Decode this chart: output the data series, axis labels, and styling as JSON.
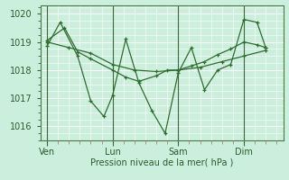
{
  "xlabel": "Pression niveau de la mer( hPa )",
  "background_color": "#cceedd",
  "grid_color": "#ffffff",
  "line_color": "#2d6e2d",
  "marker_color": "#2d6e2d",
  "ylim": [
    1015.5,
    1020.3
  ],
  "yticks": [
    1016,
    1017,
    1018,
    1019,
    1020
  ],
  "day_labels": [
    "Ven",
    "Lun",
    "Sam",
    "Dim"
  ],
  "day_positions": [
    0,
    30,
    60,
    90
  ],
  "vline_positions": [
    0,
    30,
    60,
    90
  ],
  "xlim": [
    -3,
    108
  ],
  "series": [
    {
      "x": [
        0,
        8,
        14,
        20,
        30,
        36,
        42,
        50,
        55,
        60,
        66,
        72,
        78,
        84,
        90,
        96,
        100
      ],
      "y": [
        1019.05,
        1019.5,
        1018.65,
        1018.4,
        1018.0,
        1017.75,
        1017.6,
        1017.8,
        1018.0,
        1018.0,
        1018.15,
        1018.3,
        1018.55,
        1018.75,
        1019.0,
        1018.9,
        1018.8
      ]
    },
    {
      "x": [
        0,
        6,
        14,
        20,
        26,
        30,
        36,
        42,
        48,
        54,
        60,
        66,
        72,
        78,
        84,
        90,
        96,
        100
      ],
      "y": [
        1018.85,
        1019.7,
        1018.5,
        1016.9,
        1016.35,
        1017.1,
        1019.1,
        1017.55,
        1016.55,
        1015.75,
        1017.9,
        1018.8,
        1017.3,
        1018.0,
        1018.2,
        1019.8,
        1019.7,
        1018.8
      ]
    },
    {
      "x": [
        0,
        10,
        20,
        30,
        40,
        50,
        60,
        70,
        80,
        90,
        100
      ],
      "y": [
        1019.0,
        1018.8,
        1018.6,
        1018.2,
        1018.0,
        1017.95,
        1018.0,
        1018.1,
        1018.3,
        1018.5,
        1018.7
      ]
    }
  ]
}
